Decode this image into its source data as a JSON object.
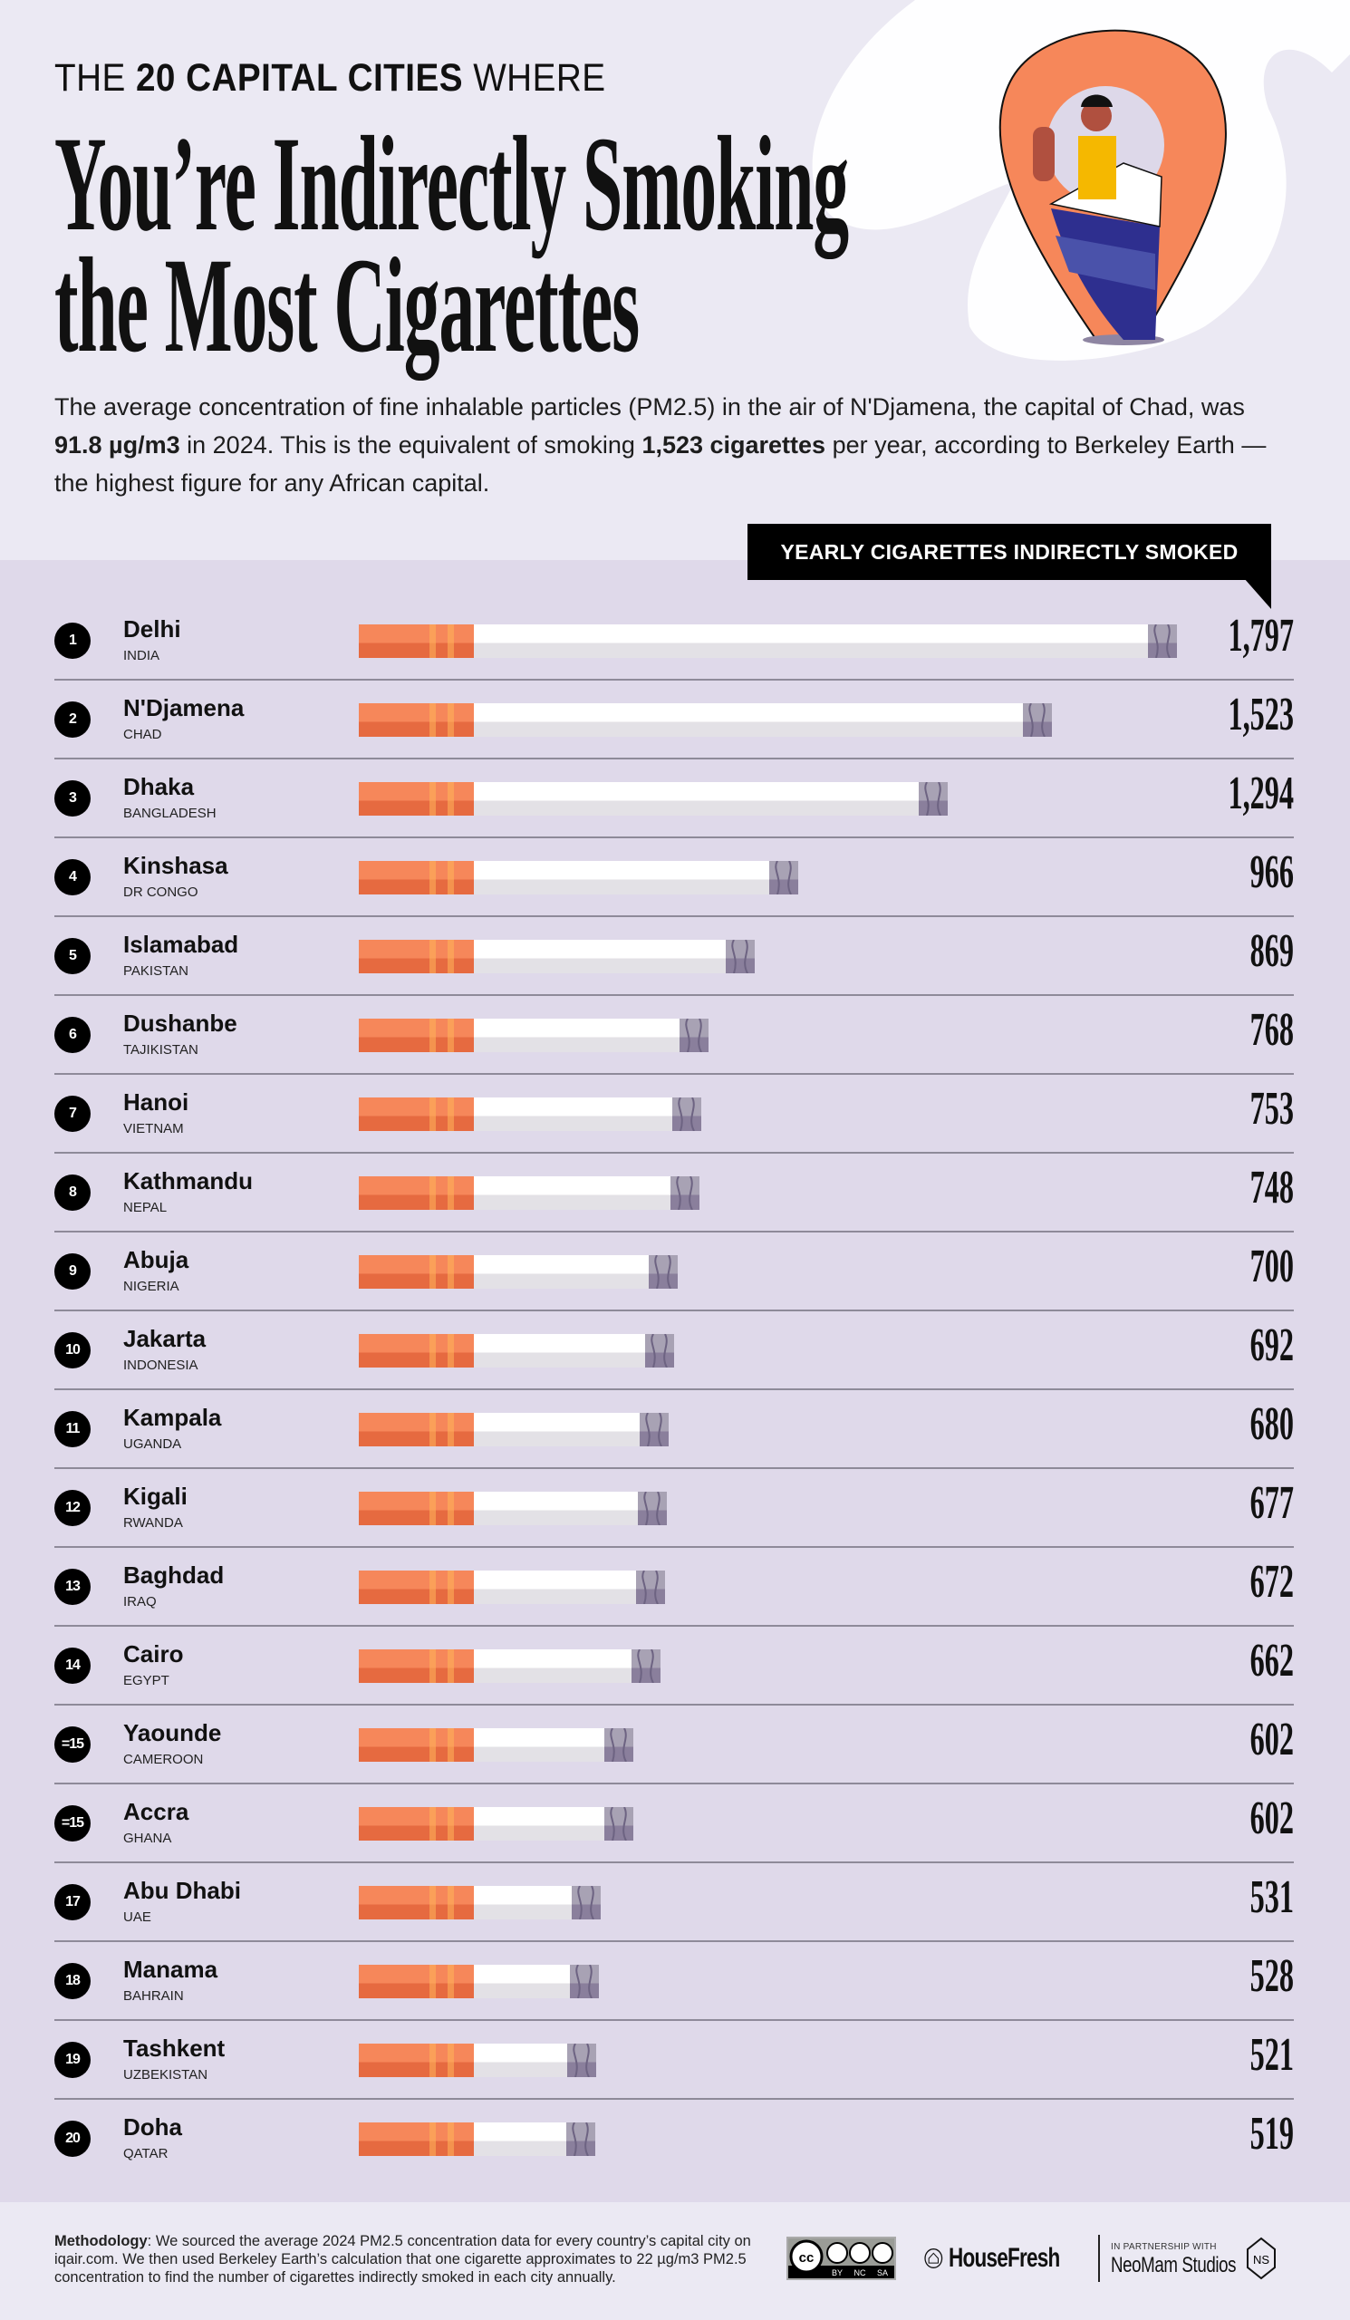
{
  "header": {
    "kicker_pre": "THE ",
    "kicker_bold": "20 CAPITAL CITIES",
    "kicker_post": " WHERE",
    "title_line1": "You’re Indirectly Smoking",
    "title_line2": "the Most Cigarettes",
    "intro_1": "The average concentration of fine inhalable particles (PM2.5) in the air of N'Djamena, the capital of Chad, was ",
    "intro_bold1": "91.8 µg/m3",
    "intro_2": " in 2024. This is the equivalent of smoking ",
    "intro_bold2": "1,523 cigarettes",
    "intro_3": " per year, according to Berkeley Earth — the highest figure for any African capital."
  },
  "colors": {
    "filter": "#f6875a",
    "filter_dark": "#e66a40",
    "chart_bg": "#dfd9ea",
    "page_bg": "#ebe9f3",
    "pin": "#f6875a",
    "box": "#2e2f8f"
  },
  "chart_data": {
    "type": "bar",
    "orientation": "horizontal",
    "value_label": "YEARLY CIGARETTES INDIRECTLY SMOKED",
    "rows": [
      {
        "rank": "1",
        "city": "Delhi",
        "country": "INDIA",
        "value": 1797,
        "label": "1,797"
      },
      {
        "rank": "2",
        "city": "N'Djamena",
        "country": "CHAD",
        "value": 1523,
        "label": "1,523"
      },
      {
        "rank": "3",
        "city": "Dhaka",
        "country": "BANGLADESH",
        "value": 1294,
        "label": "1,294"
      },
      {
        "rank": "4",
        "city": "Kinshasa",
        "country": "DR CONGO",
        "value": 966,
        "label": "966"
      },
      {
        "rank": "5",
        "city": "Islamabad",
        "country": "PAKISTAN",
        "value": 869,
        "label": "869"
      },
      {
        "rank": "6",
        "city": "Dushanbe",
        "country": "TAJIKISTAN",
        "value": 768,
        "label": "768"
      },
      {
        "rank": "7",
        "city": "Hanoi",
        "country": "VIETNAM",
        "value": 753,
        "label": "753"
      },
      {
        "rank": "8",
        "city": "Kathmandu",
        "country": "NEPAL",
        "value": 748,
        "label": "748"
      },
      {
        "rank": "9",
        "city": "Abuja",
        "country": "NIGERIA",
        "value": 700,
        "label": "700"
      },
      {
        "rank": "10",
        "city": "Jakarta",
        "country": "INDONESIA",
        "value": 692,
        "label": "692"
      },
      {
        "rank": "11",
        "city": "Kampala",
        "country": "UGANDA",
        "value": 680,
        "label": "680"
      },
      {
        "rank": "12",
        "city": "Kigali",
        "country": "RWANDA",
        "value": 677,
        "label": "677"
      },
      {
        "rank": "13",
        "city": "Baghdad",
        "country": "IRAQ",
        "value": 672,
        "label": "672"
      },
      {
        "rank": "14",
        "city": "Cairo",
        "country": "EGYPT",
        "value": 662,
        "label": "662"
      },
      {
        "rank": "=15",
        "city": "Yaounde",
        "country": "CAMEROON",
        "value": 602,
        "label": "602"
      },
      {
        "rank": "=15",
        "city": "Accra",
        "country": "GHANA",
        "value": 602,
        "label": "602"
      },
      {
        "rank": "17",
        "city": "Abu Dhabi",
        "country": "UAE",
        "value": 531,
        "label": "531"
      },
      {
        "rank": "18",
        "city": "Manama",
        "country": "BAHRAIN",
        "value": 528,
        "label": "528"
      },
      {
        "rank": "19",
        "city": "Tashkent",
        "country": "UZBEKISTAN",
        "value": 521,
        "label": "521"
      },
      {
        "rank": "20",
        "city": "Doha",
        "country": "QATAR",
        "value": 519,
        "label": "519"
      }
    ]
  },
  "footer": {
    "methodology_label": "Methodology",
    "methodology_text": ":  We sourced the average 2024 PM2.5 concentration data for every country’s capital city on iqair.com. We then used Berkeley Earth’s calculation that one cigarette approximates to 22 µg/m3 PM2.5 concentration to find the number of cigarettes indirectly smoked in each city annually.",
    "license": "CC BY NC SA",
    "license_parts": [
      "BY",
      "NC",
      "SA"
    ],
    "brand": "HouseFresh",
    "partner_label": "IN PARTNERSHIP WITH",
    "partner": "NeoMam Studios"
  }
}
